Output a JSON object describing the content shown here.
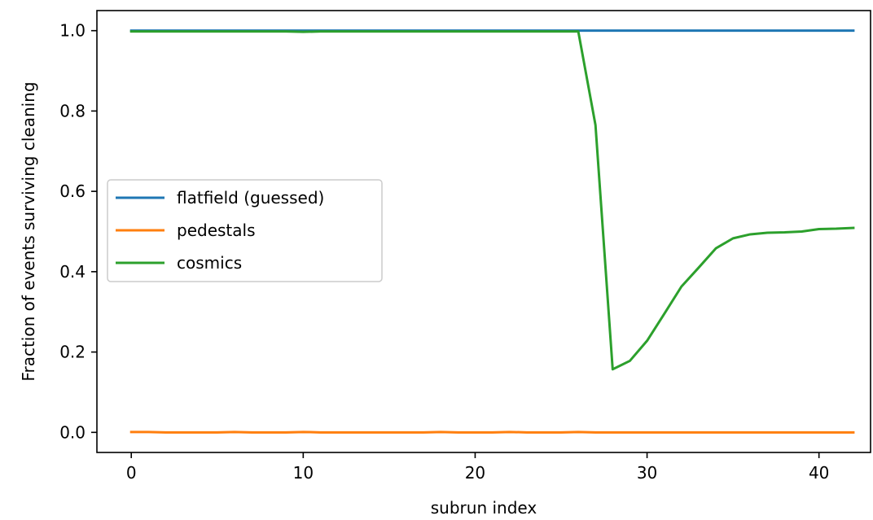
{
  "chart_data": {
    "type": "line",
    "xlabel": "subrun index",
    "ylabel": "Fraction of events surviving cleaning",
    "xlim": [
      -2,
      43
    ],
    "ylim": [
      -0.05,
      1.05
    ],
    "xticks": [
      0,
      10,
      20,
      30,
      40
    ],
    "yticks": [
      0.0,
      0.2,
      0.4,
      0.6,
      0.8,
      1.0
    ],
    "yticks_labels": [
      "0.0",
      "0.2",
      "0.4",
      "0.6",
      "0.8",
      "1.0"
    ],
    "legend_position": "center-left",
    "grid": false,
    "x": [
      0,
      1,
      2,
      3,
      4,
      5,
      6,
      7,
      8,
      9,
      10,
      11,
      12,
      13,
      14,
      15,
      16,
      17,
      18,
      19,
      20,
      21,
      22,
      23,
      24,
      25,
      26,
      27,
      28,
      29,
      30,
      31,
      32,
      33,
      34,
      35,
      36,
      37,
      38,
      39,
      40,
      41,
      42
    ],
    "series": [
      {
        "name": "flatfield (guessed)",
        "color": "#1f77b4",
        "values": [
          1,
          1,
          1,
          1,
          1,
          1,
          1,
          1,
          1,
          1,
          1,
          1,
          1,
          1,
          1,
          1,
          1,
          1,
          1,
          1,
          1,
          1,
          1,
          1,
          1,
          1,
          1,
          1,
          1,
          1,
          1,
          1,
          1,
          1,
          1,
          1,
          1,
          1,
          1,
          1,
          1,
          1,
          1
        ]
      },
      {
        "name": "pedestals",
        "color": "#ff7f0e",
        "values": [
          0.001,
          0.001,
          0.0,
          0.0,
          0.0,
          0.0,
          0.001,
          0.0,
          0.0,
          0.0,
          0.001,
          0.0,
          0.0,
          0.0,
          0.0,
          0.0,
          0.0,
          0.0,
          0.001,
          0.0,
          0.0,
          0.0,
          0.001,
          0.0,
          0.0,
          0.0,
          0.001,
          0.0,
          0.0,
          0.0,
          0.0,
          0.0,
          0.0,
          0.0,
          0.0,
          0.0,
          0.0,
          0.0,
          0.0,
          0.0,
          0.0,
          0.0,
          0.0
        ]
      },
      {
        "name": "cosmics",
        "color": "#2ca02c",
        "values": [
          0.998,
          0.998,
          0.998,
          0.998,
          0.998,
          0.998,
          0.998,
          0.998,
          0.998,
          0.998,
          0.997,
          0.998,
          0.998,
          0.998,
          0.998,
          0.998,
          0.998,
          0.998,
          0.998,
          0.998,
          0.998,
          0.998,
          0.998,
          0.998,
          0.998,
          0.998,
          0.998,
          0.765,
          0.157,
          0.178,
          0.228,
          0.295,
          0.363,
          0.41,
          0.458,
          0.483,
          0.493,
          0.497,
          0.498,
          0.5,
          0.506,
          0.507,
          0.509
        ]
      }
    ]
  }
}
